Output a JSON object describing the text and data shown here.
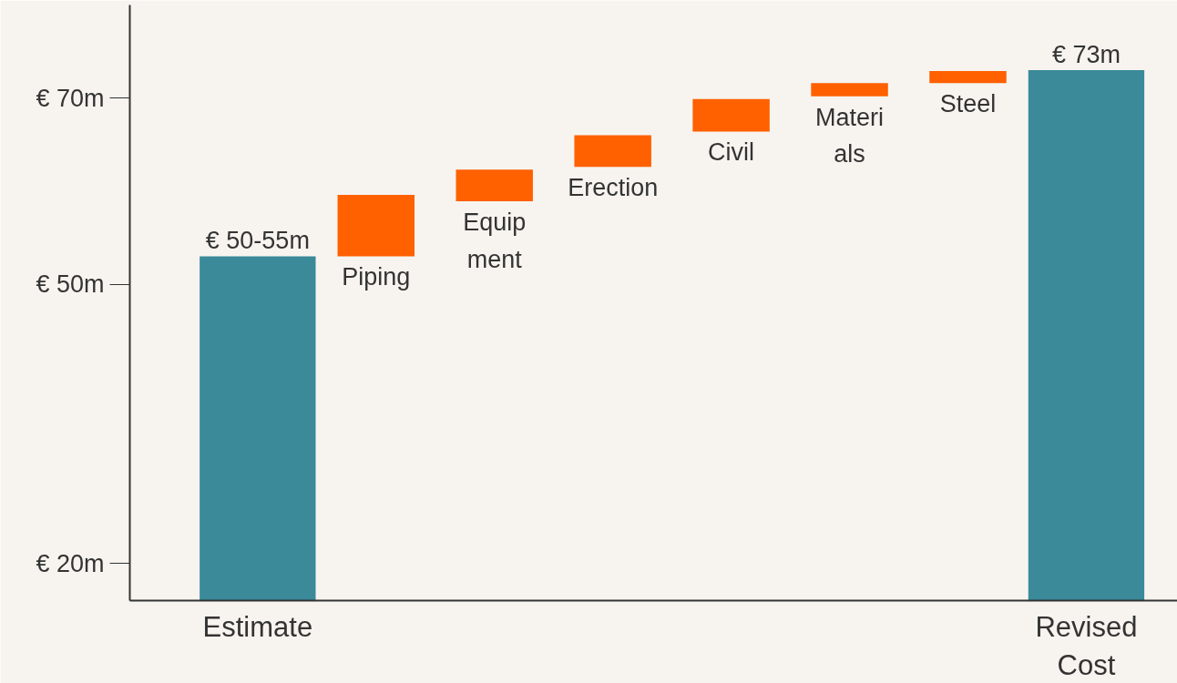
{
  "chart_data": {
    "type": "bar",
    "categories": [
      "Estimate",
      "Piping",
      "Equip\nment",
      "Erection",
      "Civil",
      "Materi\nals",
      "Steel",
      "Revised\nCost"
    ],
    "base": [
      16,
      53,
      58.9,
      62.6,
      66.4,
      70.2,
      71.6,
      16
    ],
    "values": [
      37,
      6.6,
      3.4,
      3.4,
      3.5,
      1.4,
      1.3,
      57
    ],
    "colors": [
      "#3a8a99",
      "#ff6000",
      "#ff6000",
      "#ff6000",
      "#ff6000",
      "#ff6000",
      "#ff6000",
      "#3a8a99"
    ],
    "value_labels": [
      "€ 50-55m",
      null,
      null,
      null,
      null,
      null,
      null,
      "€ 73m"
    ],
    "ylim": [
      16,
      80
    ],
    "yticks": [
      {
        "value": 20,
        "label": "€ 20m"
      },
      {
        "value": 50,
        "label": "€ 50m"
      },
      {
        "value": 70,
        "label": "€ 70m"
      }
    ],
    "grid": false
  }
}
